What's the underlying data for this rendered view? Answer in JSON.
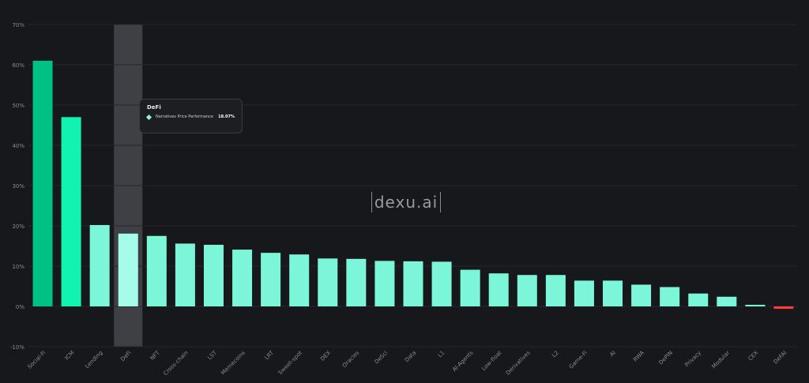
{
  "chart_data": {
    "type": "bar",
    "categories": [
      "Social-Fi",
      "ICM",
      "Lending",
      "DeFi",
      "NFT",
      "Cross-chain",
      "LST",
      "Memecoins",
      "LRT",
      "Sweet-spot",
      "DEX",
      "Oracles",
      "DeSci",
      "Data",
      "L1",
      "AI-Agents",
      "Low-float",
      "Derivatives",
      "L2",
      "Game-Fi",
      "AI",
      "RWA",
      "DePIN",
      "Privacy",
      "Modular",
      "CEX",
      "DeFAI"
    ],
    "values": [
      61,
      47,
      20.2,
      18.07,
      17.5,
      15.6,
      15.3,
      14.1,
      13.3,
      12.9,
      11.9,
      11.8,
      11.3,
      11.2,
      11.1,
      9.1,
      8.2,
      7.8,
      7.8,
      6.4,
      6.4,
      5.4,
      4.8,
      3.2,
      2.4,
      0.4,
      -0.6
    ],
    "ylim": [
      -10,
      70
    ],
    "yticks": [
      "-10%",
      "0%",
      "10%",
      "20%",
      "30%",
      "40%",
      "50%",
      "60%",
      "70%"
    ],
    "ytick_values": [
      -10,
      0,
      10,
      20,
      30,
      40,
      50,
      60,
      70
    ],
    "highlight_index": 3,
    "grid": true,
    "colors": {
      "top": "#00c185",
      "second": "#12f2b0",
      "default": "#7cf6d8",
      "highlight": "#a5fde9",
      "negative": "#ff3b3b",
      "hover_band": "#3e4046",
      "axis_text": "#8a8b8f",
      "grid": "#24262a"
    }
  },
  "tooltip": {
    "title": "DeFi",
    "series_label": "Narratives Price Performance",
    "value": "18.07%"
  },
  "watermark": "dexu.ai"
}
